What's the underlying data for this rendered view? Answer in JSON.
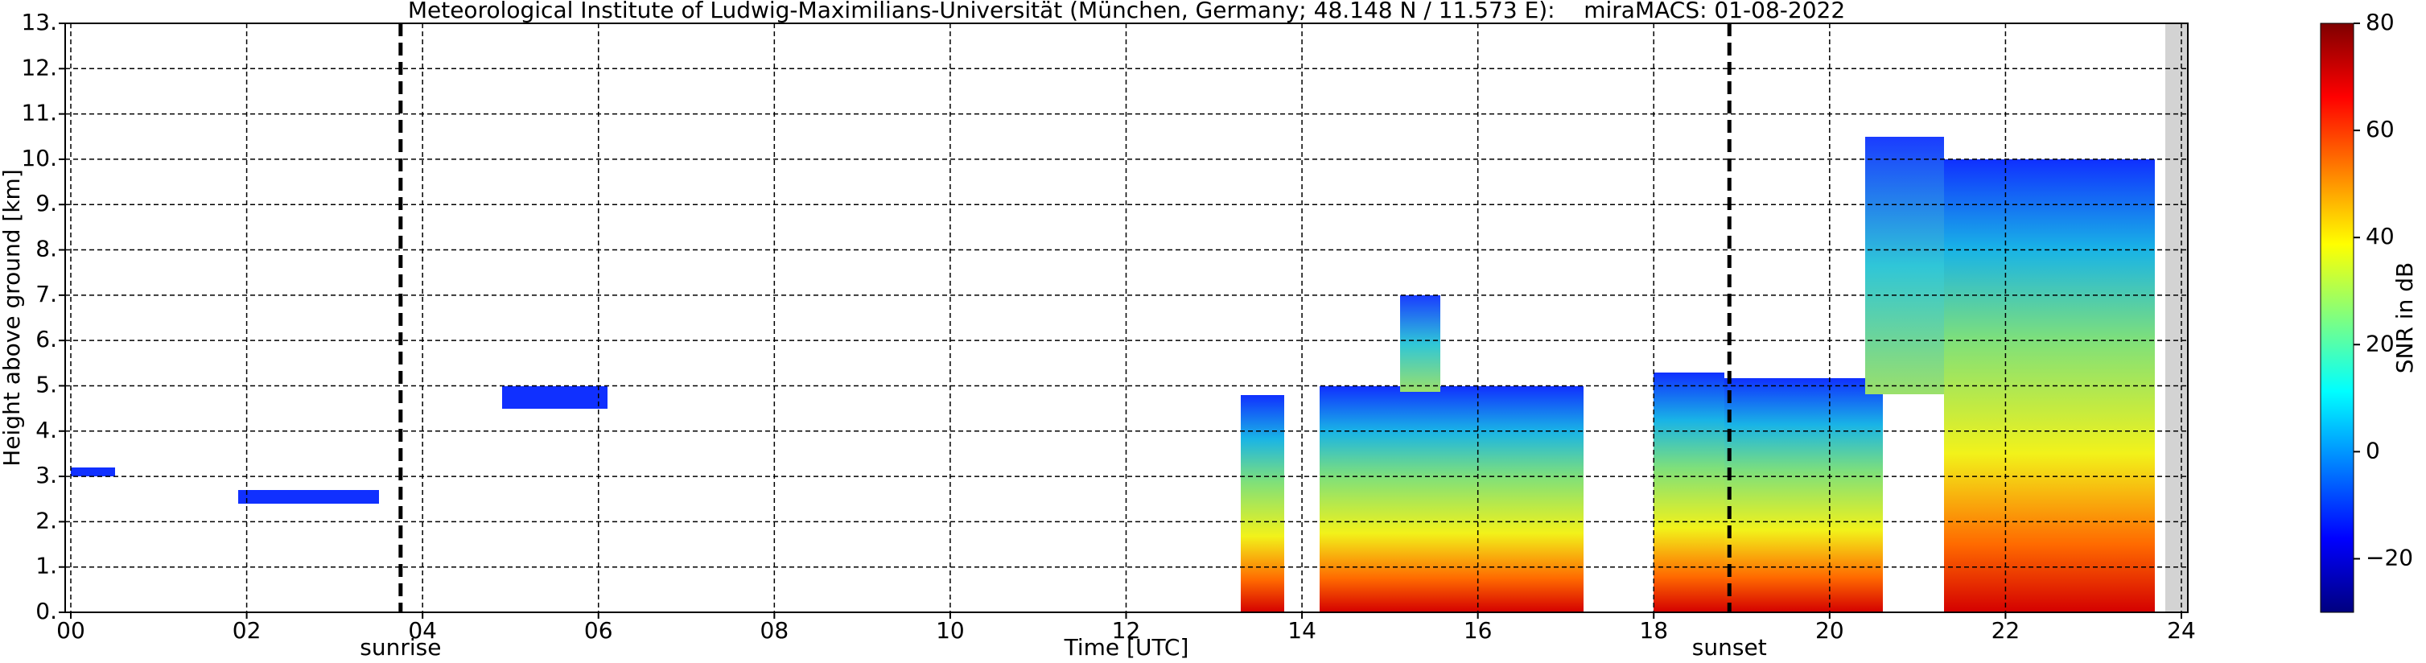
{
  "chart_data": {
    "type": "heatmap",
    "title": "Meteorological Institute of Ludwig-Maximilians-Universität (München, Germany; 48.148 N / 11.573 E):    miraMACS: 01-08-2022",
    "xlabel": "Time [UTC]",
    "ylabel": "Height above ground [km]",
    "xlim": [
      0,
      24
    ],
    "xticks": [
      {
        "value": 0,
        "label": "00"
      },
      {
        "value": 2,
        "label": "02"
      },
      {
        "value": 4,
        "label": "04"
      },
      {
        "value": 6,
        "label": "06"
      },
      {
        "value": 8,
        "label": "08"
      },
      10,
      12,
      14,
      16,
      18,
      20,
      22,
      24
    ],
    "ylim": [
      0,
      13
    ],
    "yticks": [
      {
        "value": 0,
        "label": "0."
      },
      {
        "value": 1,
        "label": "1."
      },
      {
        "value": 2,
        "label": "2."
      },
      {
        "value": 3,
        "label": "3."
      },
      {
        "value": 4,
        "label": "4."
      },
      {
        "value": 5,
        "label": "5."
      },
      {
        "value": 6,
        "label": "6."
      },
      {
        "value": 7,
        "label": "7."
      },
      {
        "value": 8,
        "label": "8."
      },
      {
        "value": 9,
        "label": "9."
      },
      {
        "value": 10,
        "label": "10."
      },
      {
        "value": 11,
        "label": "11."
      },
      {
        "value": 12,
        "label": "12."
      },
      {
        "value": 13,
        "label": "13."
      }
    ],
    "grid": true,
    "annotations": [
      {
        "text": "sunrise",
        "x": 3.75
      },
      {
        "text": "sunset",
        "x": 18.86
      }
    ],
    "colorbar": {
      "label": "SNR in dB",
      "lim": [
        -30,
        80
      ],
      "ticks": [
        {
          "value": -20,
          "label": "−20"
        },
        0,
        20,
        40,
        60,
        80
      ]
    }
  }
}
